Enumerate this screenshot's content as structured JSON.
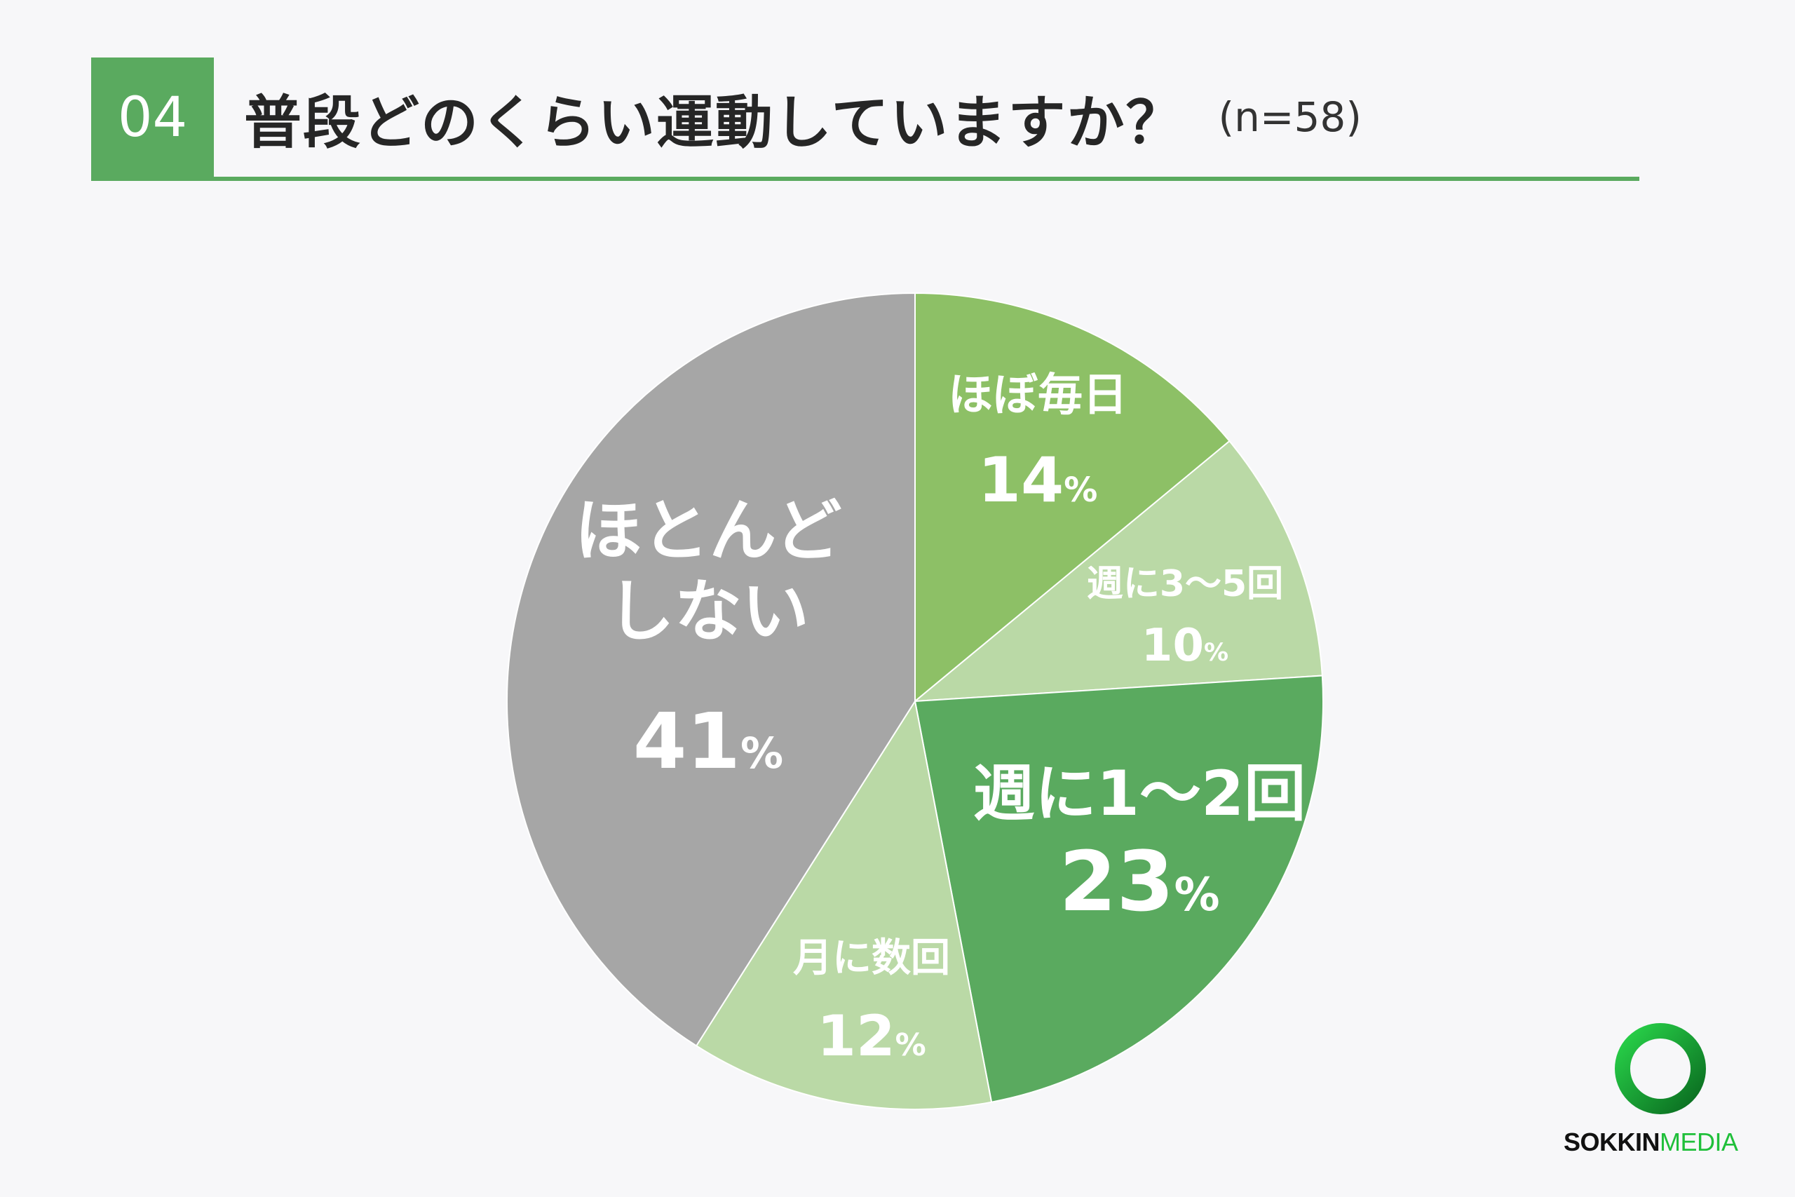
{
  "header": {
    "number": "04",
    "title": "普段どのくらい運動していますか？",
    "sample": "(n=58)",
    "accent_color": "#5aaa5f"
  },
  "chart_data": {
    "type": "pie",
    "start_angle_deg": 0,
    "direction": "clockwise",
    "slices": [
      {
        "label_lines": [
          "ほぼ毎日"
        ],
        "value": 14,
        "display": "14",
        "color": "#8dc066"
      },
      {
        "label_lines": [
          "週に3～5回"
        ],
        "value": 10,
        "display": "10",
        "color": "#bad9a6"
      },
      {
        "label_lines": [
          "週に1～2回"
        ],
        "value": 23,
        "display": "23",
        "color": "#5aaa5f"
      },
      {
        "label_lines": [
          "月に数回"
        ],
        "value": 12,
        "display": "12",
        "color": "#bad9a6"
      },
      {
        "label_lines": [
          "ほとんど",
          "しない"
        ],
        "value": 41,
        "display": "41",
        "color": "#a6a6a6"
      }
    ],
    "unit": "%"
  },
  "brand": {
    "name_part1": "SOKKIN",
    "name_part2": "MEDIA",
    "logo_icon": "ring-logo-icon"
  }
}
